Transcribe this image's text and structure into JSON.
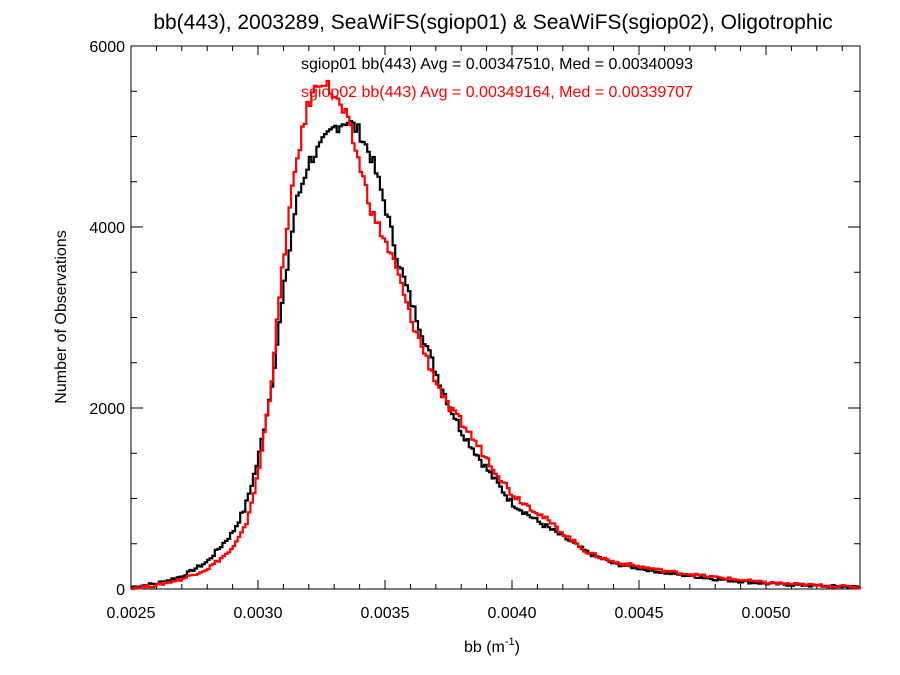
{
  "chart_data": {
    "type": "line",
    "title": "bb(443), 2003289, SeaWiFS(sgiop01) & SeaWiFS(sgiop02), Oligotrophic",
    "xlabel_main": "bb (m",
    "xlabel_sup": "-1",
    "xlabel_close": ")",
    "ylabel": "Number of Observations",
    "xlim": [
      0.0025,
      0.00537
    ],
    "ylim": [
      0,
      6000
    ],
    "xticks": [
      0.0025,
      0.003,
      0.0035,
      0.004,
      0.0045,
      0.005
    ],
    "xtick_labels": [
      "0.0025",
      "0.0030",
      "0.0035",
      "0.0040",
      "0.0045",
      "0.0050"
    ],
    "yticks": [
      0,
      2000,
      4000,
      6000
    ],
    "ytick_labels": [
      "0",
      "2000",
      "4000",
      "6000"
    ],
    "annotations": [
      "sgiop01 bb(443) Avg = 0.00347510, Med = 0.00340093",
      "sgiop02 bb(443) Avg = 0.00349164, Med = 0.00339707"
    ],
    "series": [
      {
        "color": "#000000",
        "x": [
          0.0025,
          0.0026,
          0.0027,
          0.0028,
          0.0029,
          0.00295,
          0.003,
          0.00305,
          0.0031,
          0.00315,
          0.0032,
          0.00325,
          0.0033,
          0.00335,
          0.0034,
          0.00345,
          0.0035,
          0.00355,
          0.0036,
          0.00365,
          0.0037,
          0.00375,
          0.0038,
          0.0039,
          0.004,
          0.0041,
          0.0042,
          0.0043,
          0.0044,
          0.0045,
          0.0046,
          0.0048,
          0.005,
          0.0052,
          0.00537
        ],
        "y": [
          20,
          60,
          140,
          300,
          620,
          900,
          1420,
          2170,
          3250,
          4250,
          4720,
          4900,
          5100,
          5180,
          5050,
          4750,
          4250,
          3650,
          3200,
          2800,
          2400,
          2050,
          1750,
          1330,
          950,
          750,
          580,
          400,
          280,
          230,
          180,
          110,
          60,
          35,
          20
        ]
      },
      {
        "color": "#ff0000",
        "x": [
          0.0025,
          0.0026,
          0.0027,
          0.0028,
          0.0029,
          0.00295,
          0.003,
          0.00305,
          0.0031,
          0.00315,
          0.0032,
          0.00325,
          0.0033,
          0.00335,
          0.0034,
          0.00345,
          0.0035,
          0.00355,
          0.0036,
          0.00365,
          0.0037,
          0.00375,
          0.0038,
          0.0039,
          0.004,
          0.0041,
          0.0042,
          0.0043,
          0.0044,
          0.0045,
          0.0046,
          0.0048,
          0.005,
          0.0052,
          0.00537
        ],
        "y": [
          10,
          40,
          110,
          220,
          440,
          680,
          1250,
          2200,
          3650,
          4700,
          5380,
          5650,
          5450,
          5200,
          4700,
          4150,
          3850,
          3500,
          3000,
          2650,
          2300,
          2000,
          1850,
          1450,
          1050,
          850,
          620,
          400,
          300,
          250,
          200,
          130,
          70,
          40,
          20
        ]
      }
    ]
  }
}
